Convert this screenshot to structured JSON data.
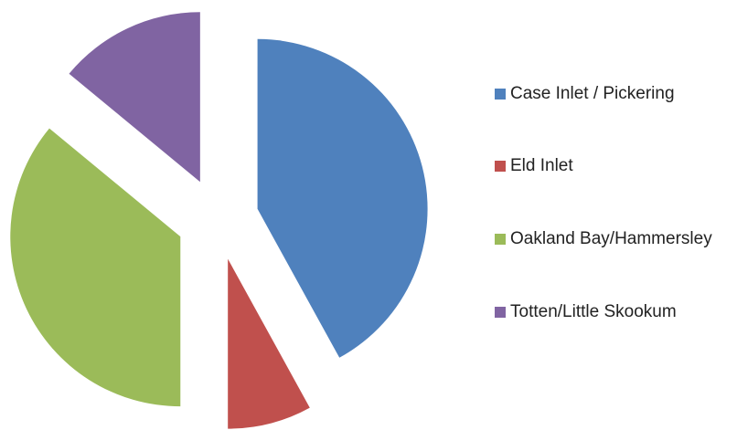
{
  "chart_data": {
    "type": "pie",
    "categories": [
      "Case Inlet / Pickering",
      "Eld Inlet",
      "Oakland Bay/Hammersley",
      "Totten/Little Skookum"
    ],
    "values": [
      42,
      8,
      36,
      14
    ],
    "colors": [
      "#4f81bd",
      "#c0504d",
      "#9bbb59",
      "#8064a2"
    ],
    "exploded": true,
    "legend": "right"
  }
}
